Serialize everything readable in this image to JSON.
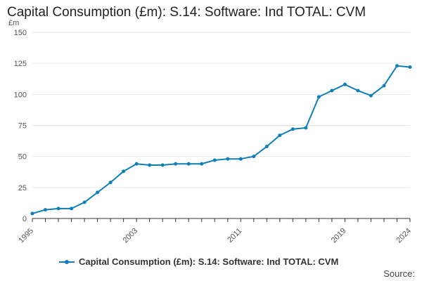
{
  "title": "Capital Consumption (£m): S.14: Software: Ind TOTAL: CVM",
  "source_label": "Source:",
  "colors": {
    "series": "#0F7FB8",
    "grid": "#e6e6e6",
    "axis": "#333333",
    "tick_text": "#555555"
  },
  "chart_data": {
    "type": "line",
    "title": "Capital Consumption (£m): S.14: Software: Ind TOTAL: CVM",
    "ylabel": "£m",
    "xlabel": "",
    "ylim": [
      0,
      150
    ],
    "yticks": [
      0,
      25,
      50,
      75,
      100,
      125,
      150
    ],
    "xlim": [
      1995,
      2024
    ],
    "xticks": [
      1995,
      2003,
      2011,
      2019,
      2024
    ],
    "x": [
      1995,
      1996,
      1997,
      1998,
      1999,
      2000,
      2001,
      2002,
      2003,
      2004,
      2005,
      2006,
      2007,
      2008,
      2009,
      2010,
      2011,
      2012,
      2013,
      2014,
      2015,
      2016,
      2017,
      2018,
      2019,
      2020,
      2021,
      2022,
      2023,
      2024
    ],
    "series": [
      {
        "name": "Capital Consumption (£m): S.14: Software: Ind TOTAL: CVM",
        "values": [
          4,
          7,
          8,
          8,
          13,
          21,
          29,
          38,
          44,
          43,
          43,
          44,
          44,
          44,
          47,
          48,
          48,
          50,
          58,
          67,
          72,
          73,
          98,
          103,
          108,
          103,
          99,
          107,
          123,
          122
        ]
      }
    ],
    "grid": true,
    "legend_position": "bottom"
  }
}
